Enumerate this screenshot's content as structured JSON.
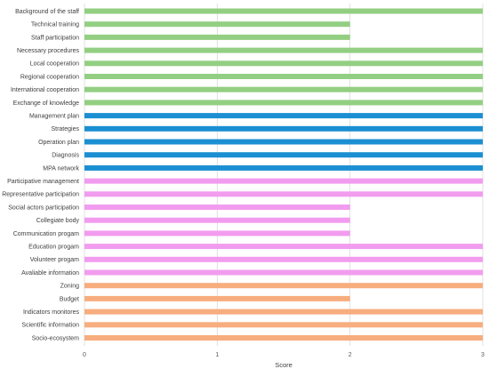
{
  "chart_data": {
    "type": "bar",
    "orientation": "horizontal",
    "xlabel": "Score",
    "xlim": [
      0,
      3
    ],
    "xticks": [
      "0",
      "1",
      "2",
      "3"
    ],
    "grid": true,
    "legend": "none",
    "categories": [
      "Background of the staff",
      "Technical training",
      "Staff participation",
      "Necessary procedures",
      "Local cooperation",
      "Regional cooperation",
      "International cooperation",
      "Exchange of knowledge",
      "Management plan",
      "Strategies",
      "Operation plan",
      "Diagnosis",
      "MPA network",
      "Participative management",
      "Representative participation",
      "Social actors participation",
      "Collegiate body",
      "Communication progam",
      "Education progam",
      "Volunteer progam",
      "Avaliable information",
      "Zoning",
      "Budget",
      "Indicators monitores",
      "Scientific information",
      "Socio-ecosystem"
    ],
    "values": [
      3,
      2,
      2,
      3,
      3,
      3,
      3,
      3,
      3,
      3,
      3,
      3,
      3,
      3,
      3,
      2,
      2,
      2,
      3,
      3,
      3,
      3,
      2,
      3,
      3,
      3
    ],
    "colors": [
      "#93cf82",
      "#93cf82",
      "#93cf82",
      "#93cf82",
      "#93cf82",
      "#93cf82",
      "#93cf82",
      "#93cf82",
      "#1b8fd2",
      "#1b8fd2",
      "#1b8fd2",
      "#1b8fd2",
      "#1b8fd2",
      "#f29cef",
      "#f29cef",
      "#f29cef",
      "#f29cef",
      "#f29cef",
      "#f29cef",
      "#f29cef",
      "#f29cef",
      "#f7ad7e",
      "#f7ad7e",
      "#f7ad7e",
      "#f7ad7e",
      "#f7ad7e"
    ],
    "gridline_color": "#d9d9d9"
  }
}
